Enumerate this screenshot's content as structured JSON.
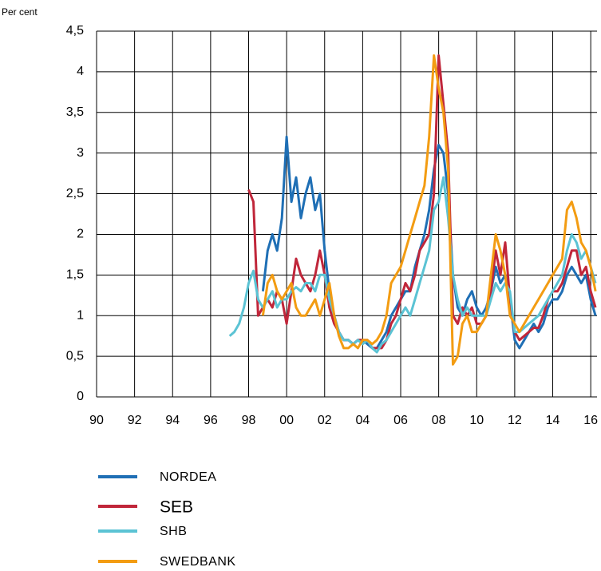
{
  "chart_data": {
    "type": "line",
    "y_label": "Per cent",
    "x": [
      1997,
      1997.25,
      1997.5,
      1997.75,
      1998,
      1998.25,
      1998.5,
      1998.75,
      1999,
      1999.25,
      1999.5,
      1999.75,
      2000,
      2000.25,
      2000.5,
      2000.75,
      2001,
      2001.25,
      2001.5,
      2001.75,
      2002,
      2002.25,
      2002.5,
      2002.75,
      2003,
      2003.25,
      2003.5,
      2003.75,
      2004,
      2004.25,
      2004.5,
      2004.75,
      2005,
      2005.25,
      2005.5,
      2005.75,
      2006,
      2006.25,
      2006.5,
      2006.75,
      2007,
      2007.25,
      2007.5,
      2007.75,
      2008,
      2008.25,
      2008.5,
      2008.75,
      2009,
      2009.25,
      2009.5,
      2009.75,
      2010,
      2010.25,
      2010.5,
      2010.75,
      2011,
      2011.25,
      2011.5,
      2011.75,
      2012,
      2012.25,
      2012.5,
      2012.75,
      2013,
      2013.25,
      2013.5,
      2013.75,
      2014,
      2014.25,
      2014.5,
      2014.75,
      2015,
      2015.25,
      2015.5,
      2015.75,
      2016,
      2016.25
    ],
    "series": [
      {
        "name": "NORDEA",
        "color": "#1f6fb5",
        "values": [
          null,
          null,
          null,
          null,
          null,
          null,
          null,
          1.3,
          1.8,
          2.0,
          1.8,
          2.2,
          3.2,
          2.4,
          2.7,
          2.2,
          2.5,
          2.7,
          2.3,
          2.5,
          1.8,
          1.3,
          1.0,
          0.8,
          0.7,
          0.7,
          0.65,
          0.7,
          0.7,
          0.65,
          0.6,
          0.6,
          0.7,
          0.8,
          1.0,
          1.1,
          1.2,
          1.3,
          1.3,
          1.6,
          1.8,
          2.0,
          2.3,
          2.8,
          3.1,
          3.0,
          2.5,
          1.5,
          1.1,
          1.0,
          1.2,
          1.3,
          1.1,
          1.0,
          1.1,
          1.3,
          1.6,
          1.4,
          1.5,
          1.2,
          0.7,
          0.6,
          0.7,
          0.8,
          0.9,
          0.8,
          0.9,
          1.1,
          1.2,
          1.2,
          1.3,
          1.5,
          1.6,
          1.5,
          1.4,
          1.5,
          1.2,
          1.0
        ]
      },
      {
        "name": "SEB",
        "color": "#c0263a",
        "values": [
          null,
          null,
          null,
          null,
          2.55,
          2.4,
          1.0,
          1.1,
          1.2,
          1.1,
          1.3,
          1.2,
          0.9,
          1.3,
          1.7,
          1.5,
          1.4,
          1.3,
          1.5,
          1.8,
          1.5,
          1.1,
          0.9,
          0.8,
          0.7,
          0.7,
          0.65,
          0.7,
          0.7,
          0.7,
          0.6,
          0.6,
          0.6,
          0.7,
          0.9,
          1.0,
          1.2,
          1.4,
          1.3,
          1.5,
          1.8,
          1.9,
          2.0,
          2.5,
          4.2,
          3.6,
          3.0,
          1.0,
          0.9,
          1.1,
          1.0,
          1.1,
          0.9,
          0.9,
          1.0,
          1.3,
          1.8,
          1.5,
          1.9,
          1.2,
          0.8,
          0.7,
          0.75,
          0.8,
          0.85,
          0.85,
          1.0,
          1.2,
          1.3,
          1.3,
          1.4,
          1.6,
          1.8,
          1.8,
          1.5,
          1.6,
          1.3,
          1.1
        ]
      },
      {
        "name": "SHB",
        "color": "#5bc3d4",
        "values": [
          0.75,
          0.8,
          0.9,
          1.1,
          1.4,
          1.55,
          1.2,
          1.1,
          1.2,
          1.3,
          1.1,
          1.2,
          1.2,
          1.3,
          1.35,
          1.3,
          1.4,
          1.4,
          1.3,
          1.5,
          1.5,
          1.2,
          1.0,
          0.8,
          0.7,
          0.7,
          0.65,
          0.7,
          0.65,
          0.7,
          0.6,
          0.55,
          0.65,
          0.7,
          0.8,
          0.9,
          1.0,
          1.1,
          1.0,
          1.2,
          1.4,
          1.6,
          1.8,
          2.3,
          2.4,
          2.7,
          2.2,
          1.5,
          1.2,
          1.0,
          1.1,
          1.0,
          1.0,
          1.0,
          1.0,
          1.2,
          1.4,
          1.3,
          1.4,
          1.3,
          0.8,
          0.8,
          0.85,
          0.9,
          0.95,
          1.0,
          1.1,
          1.2,
          1.3,
          1.4,
          1.5,
          1.8,
          2.0,
          1.9,
          1.7,
          1.8,
          1.6,
          1.4
        ]
      },
      {
        "name": "SWEDBANK",
        "color": "#f39c12",
        "values": [
          null,
          null,
          null,
          null,
          null,
          null,
          null,
          1.0,
          1.4,
          1.5,
          1.3,
          1.2,
          1.3,
          1.4,
          1.1,
          1.0,
          1.0,
          1.1,
          1.2,
          1.0,
          1.2,
          1.4,
          1.0,
          0.75,
          0.6,
          0.6,
          0.65,
          0.6,
          0.7,
          0.7,
          0.65,
          0.7,
          0.8,
          1.0,
          1.4,
          1.5,
          1.6,
          1.8,
          2.0,
          2.2,
          2.4,
          2.6,
          3.2,
          4.2,
          3.8,
          3.5,
          2.8,
          0.4,
          0.5,
          0.9,
          1.0,
          0.8,
          0.8,
          0.9,
          1.0,
          1.5,
          2.0,
          1.8,
          1.5,
          1.0,
          0.9,
          0.8,
          0.9,
          1.0,
          1.1,
          1.2,
          1.3,
          1.4,
          1.5,
          1.6,
          1.7,
          2.3,
          2.4,
          2.2,
          1.9,
          1.8,
          1.6,
          1.3
        ]
      }
    ],
    "xlim": [
      1990,
      2016.33
    ],
    "xticks": [
      {
        "value": 1990,
        "label": "90"
      },
      {
        "value": 1992,
        "label": "92"
      },
      {
        "value": 1994,
        "label": "94"
      },
      {
        "value": 1996,
        "label": "96"
      },
      {
        "value": 1998,
        "label": "98"
      },
      {
        "value": 2000,
        "label": "00"
      },
      {
        "value": 2002,
        "label": "02"
      },
      {
        "value": 2004,
        "label": "04"
      },
      {
        "value": 2006,
        "label": "06"
      },
      {
        "value": 2008,
        "label": "08"
      },
      {
        "value": 2010,
        "label": "10"
      },
      {
        "value": 2012,
        "label": "12"
      },
      {
        "value": 2014,
        "label": "14"
      },
      {
        "value": 2016,
        "label": "16"
      }
    ],
    "ylim": [
      0,
      4.5
    ],
    "yticks": [
      0,
      {
        "value": 0.5,
        "label": "0,5"
      },
      1,
      {
        "value": 1.5,
        "label": "1,5"
      },
      2,
      {
        "value": 2.5,
        "label": "2,5"
      },
      3,
      {
        "value": 3.5,
        "label": "3,5"
      },
      4,
      {
        "value": 4.5,
        "label": "4,5"
      }
    ],
    "grid": true,
    "legend": "bottom"
  }
}
